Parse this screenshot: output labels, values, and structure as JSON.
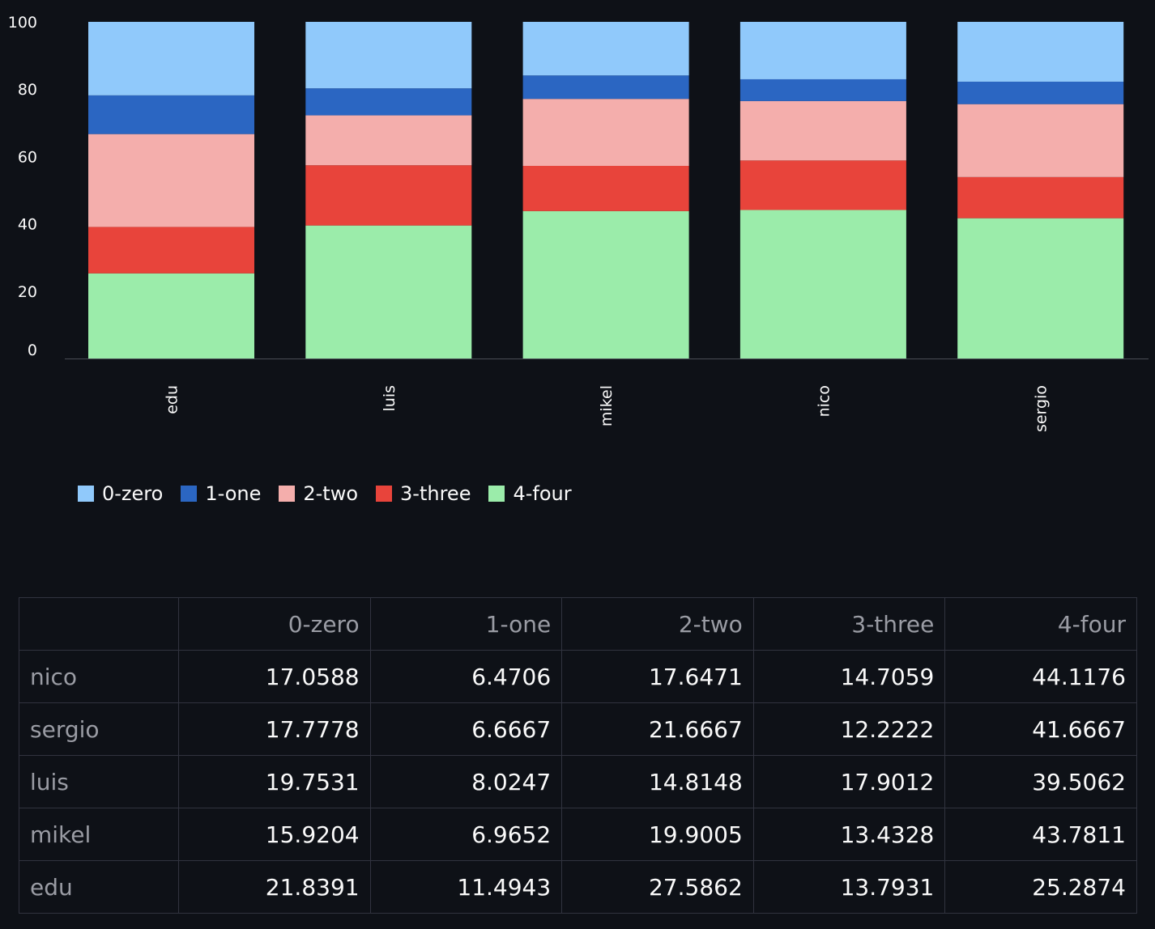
{
  "chart_data": {
    "type": "bar",
    "stacked": true,
    "categories": [
      "edu",
      "luis",
      "mikel",
      "nico",
      "sergio"
    ],
    "ylim": [
      0,
      100
    ],
    "yticks": [
      0,
      20,
      40,
      60,
      80,
      100
    ],
    "legend_position": "bottom-left",
    "series": [
      {
        "name": "0-zero",
        "color": "#90c9fb",
        "values": [
          21.8391,
          19.7531,
          15.9204,
          17.0588,
          17.7778
        ]
      },
      {
        "name": "1-one",
        "color": "#2b66c2",
        "values": [
          11.4943,
          8.0247,
          6.9652,
          6.4706,
          6.6667
        ]
      },
      {
        "name": "2-two",
        "color": "#f4aeac",
        "values": [
          27.5862,
          14.8148,
          19.9005,
          17.6471,
          21.6667
        ]
      },
      {
        "name": "3-three",
        "color": "#e8443b",
        "values": [
          13.7931,
          17.9012,
          13.4328,
          14.7059,
          12.2222
        ]
      },
      {
        "name": "4-four",
        "color": "#9becaa",
        "values": [
          25.2874,
          39.5062,
          43.7811,
          44.1176,
          41.6667
        ]
      }
    ]
  },
  "table": {
    "columns": [
      "0-zero",
      "1-one",
      "2-two",
      "3-three",
      "4-four"
    ],
    "rows": [
      {
        "label": "nico",
        "values": [
          "17.0588",
          "6.4706",
          "17.6471",
          "14.7059",
          "44.1176"
        ]
      },
      {
        "label": "sergio",
        "values": [
          "17.7778",
          "6.6667",
          "21.6667",
          "12.2222",
          "41.6667"
        ]
      },
      {
        "label": "luis",
        "values": [
          "19.7531",
          "8.0247",
          "14.8148",
          "17.9012",
          "39.5062"
        ]
      },
      {
        "label": "mikel",
        "values": [
          "15.9204",
          "6.9652",
          "19.9005",
          "13.4328",
          "43.7811"
        ]
      },
      {
        "label": "edu",
        "values": [
          "21.8391",
          "11.4943",
          "27.5862",
          "13.7931",
          "25.2874"
        ]
      }
    ]
  }
}
